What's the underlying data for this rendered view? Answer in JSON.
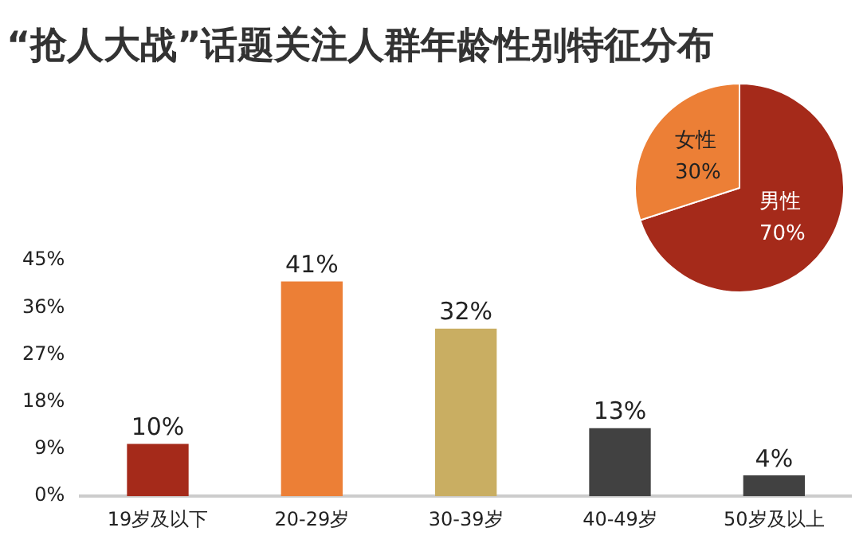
{
  "chart_data": [
    {
      "type": "bar",
      "title": "“抢人大战”话题关注人群年龄性别特征分布",
      "categories": [
        "19岁及以下",
        "20-29岁",
        "30-39岁",
        "40-49岁",
        "50岁及以上"
      ],
      "values": [
        10,
        41,
        32,
        13,
        4
      ],
      "colors": [
        "#a52a1a",
        "#ec7f36",
        "#c9ae62",
        "#414141",
        "#414141"
      ],
      "value_labels": [
        "10%",
        "41%",
        "32%",
        "13%",
        "4%"
      ],
      "ylim": [
        0,
        45
      ],
      "yticks": [
        {
          "value": 0,
          "label": "0%"
        },
        {
          "value": 9,
          "label": "9%"
        },
        {
          "value": 18,
          "label": "18%"
        },
        {
          "value": 27,
          "label": "27%"
        },
        {
          "value": 36,
          "label": "36%"
        },
        {
          "value": 45,
          "label": "45%"
        }
      ],
      "grid": false,
      "legend": false
    },
    {
      "type": "pie",
      "categories": [
        "男性",
        "女性"
      ],
      "values": [
        70,
        30
      ],
      "colors": [
        "#a52a1a",
        "#ec7f36"
      ],
      "value_labels": [
        "70%",
        "30%"
      ],
      "legend": false
    }
  ]
}
